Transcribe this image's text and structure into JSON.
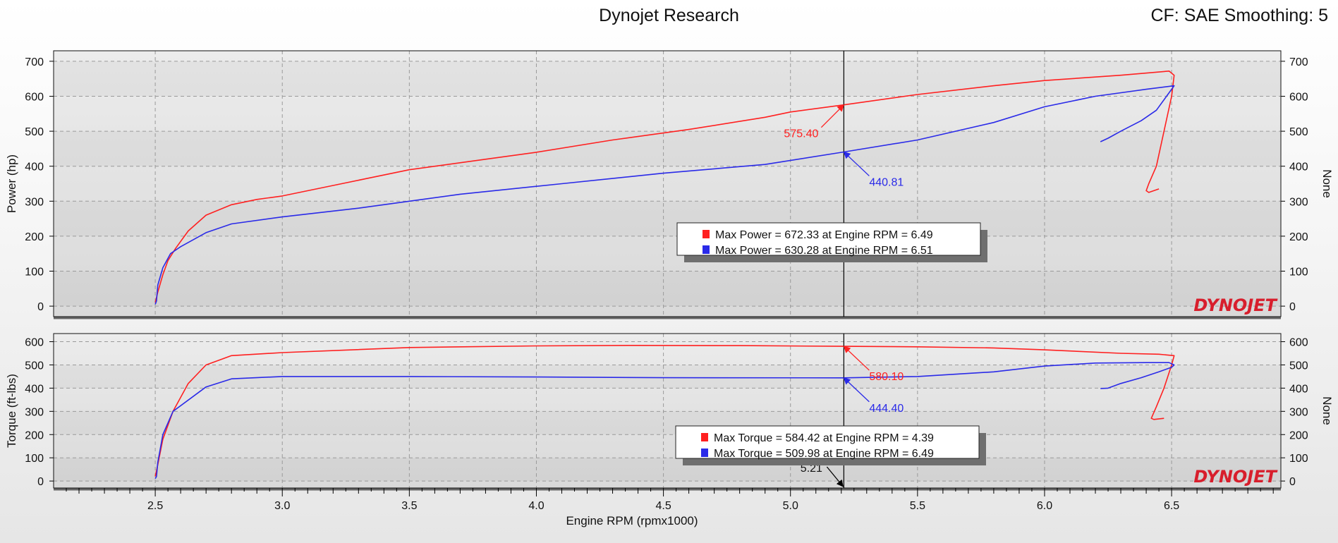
{
  "header": {
    "title": "Dynojet Research",
    "cf_text": "CF: SAE Smoothing: 5"
  },
  "colors": {
    "run1": "#ff2020",
    "run2": "#2a2ae8",
    "logo": "#d81e2c"
  },
  "logo_text": "DYNOJET",
  "chart_data": [
    {
      "type": "line",
      "name": "power",
      "ylabel": "Power (hp)",
      "right_ylabel": "None",
      "xlim": [
        2.1,
        6.93
      ],
      "ylim": [
        -30,
        730
      ],
      "yticks": [
        0,
        100,
        200,
        300,
        400,
        500,
        600,
        700
      ],
      "grid": true,
      "cursor_x": 5.21,
      "legend": {
        "placement": "center",
        "entries": [
          {
            "text": "Max Power = 672.33 at Engine RPM = 6.49",
            "color": "#ff2020"
          },
          {
            "text": "Max Power = 630.28 at Engine RPM = 6.51",
            "color": "#2a2ae8"
          }
        ]
      },
      "annotations": [
        {
          "text": "575.40",
          "x": 5.21,
          "y": 575.4,
          "color": "#ff2020"
        },
        {
          "text": "440.81",
          "x": 5.21,
          "y": 440.8,
          "color": "#2a2ae8"
        }
      ],
      "series": [
        {
          "color": "#ff2020",
          "x": [
            2.5,
            2.51,
            2.53,
            2.55,
            2.58,
            2.63,
            2.7,
            2.8,
            2.9,
            3.0,
            3.2,
            3.5,
            3.8,
            4.0,
            4.3,
            4.6,
            4.9,
            5.0,
            5.21,
            5.5,
            5.8,
            6.0,
            6.3,
            6.49,
            6.51,
            6.5,
            6.47,
            6.44,
            6.41,
            6.4,
            6.41,
            6.45
          ],
          "y": [
            10,
            40,
            90,
            130,
            165,
            215,
            260,
            290,
            305,
            315,
            345,
            390,
            420,
            440,
            475,
            505,
            540,
            555,
            575.4,
            605,
            630,
            645,
            660,
            672,
            660,
            600,
            500,
            400,
            350,
            330,
            325,
            335
          ]
        },
        {
          "color": "#2a2ae8",
          "x": [
            2.5,
            2.505,
            2.51,
            2.53,
            2.56,
            2.6,
            2.7,
            2.8,
            3.0,
            3.3,
            3.7,
            4.1,
            4.5,
            4.9,
            5.21,
            5.5,
            5.8,
            6.0,
            6.2,
            6.4,
            6.51,
            6.48,
            6.44,
            6.38,
            6.3,
            6.25,
            6.22
          ],
          "y": [
            5,
            15,
            60,
            110,
            150,
            170,
            210,
            235,
            255,
            280,
            320,
            350,
            380,
            405,
            440.8,
            475,
            525,
            570,
            600,
            620,
            630,
            600,
            560,
            530,
            500,
            480,
            470
          ]
        }
      ]
    },
    {
      "type": "line",
      "name": "torque",
      "ylabel": "Torque (ft-lbs)",
      "right_ylabel": "None",
      "xlabel": "Engine RPM (rpmx1000)",
      "xlim": [
        2.1,
        6.93
      ],
      "ylim": [
        -30,
        635
      ],
      "yticks": [
        0,
        100,
        200,
        300,
        400,
        500,
        600
      ],
      "xticks": [
        2.5,
        3.0,
        3.5,
        4.0,
        4.5,
        5.0,
        5.5,
        6.0,
        6.5
      ],
      "x_tick_labels": [
        "2.5",
        "3.0",
        "3.5",
        "4.0",
        "4.5",
        "5.0",
        "5.5",
        "6.0",
        "6.5"
      ],
      "grid": true,
      "cursor_x": 5.21,
      "cursor_label": "5.21",
      "legend": {
        "placement": "bottom-center",
        "entries": [
          {
            "text": "Max Torque = 584.42 at Engine RPM = 4.39",
            "color": "#ff2020"
          },
          {
            "text": "Max Torque = 509.98 at Engine RPM = 6.49",
            "color": "#2a2ae8"
          }
        ]
      },
      "annotations": [
        {
          "text": "580.10",
          "x": 5.21,
          "y": 580.1,
          "color": "#ff2020"
        },
        {
          "text": "444.40",
          "x": 5.21,
          "y": 444.4,
          "color": "#2a2ae8"
        }
      ],
      "series": [
        {
          "color": "#ff2020",
          "x": [
            2.5,
            2.51,
            2.53,
            2.57,
            2.63,
            2.7,
            2.8,
            3.0,
            3.5,
            4.0,
            4.39,
            4.8,
            5.21,
            5.5,
            5.8,
            6.0,
            6.3,
            6.45,
            6.51,
            6.5,
            6.47,
            6.44,
            6.42,
            6.43,
            6.47
          ],
          "y": [
            20,
            70,
            180,
            300,
            420,
            500,
            540,
            553,
            575,
            582,
            584,
            583,
            580,
            578,
            573,
            565,
            550,
            546,
            540,
            500,
            400,
            320,
            270,
            265,
            270
          ]
        },
        {
          "color": "#2a2ae8",
          "x": [
            2.5,
            2.505,
            2.51,
            2.53,
            2.57,
            2.7,
            2.8,
            3.0,
            3.5,
            4.0,
            4.5,
            5.21,
            5.5,
            5.8,
            6.0,
            6.2,
            6.4,
            6.49,
            6.51,
            6.5,
            6.45,
            6.38,
            6.3,
            6.25,
            6.22
          ],
          "y": [
            10,
            20,
            80,
            200,
            300,
            405,
            440,
            450,
            450,
            448,
            445,
            444.4,
            450,
            470,
            495,
            508,
            510,
            510,
            500,
            490,
            470,
            445,
            420,
            400,
            398
          ]
        }
      ]
    }
  ]
}
